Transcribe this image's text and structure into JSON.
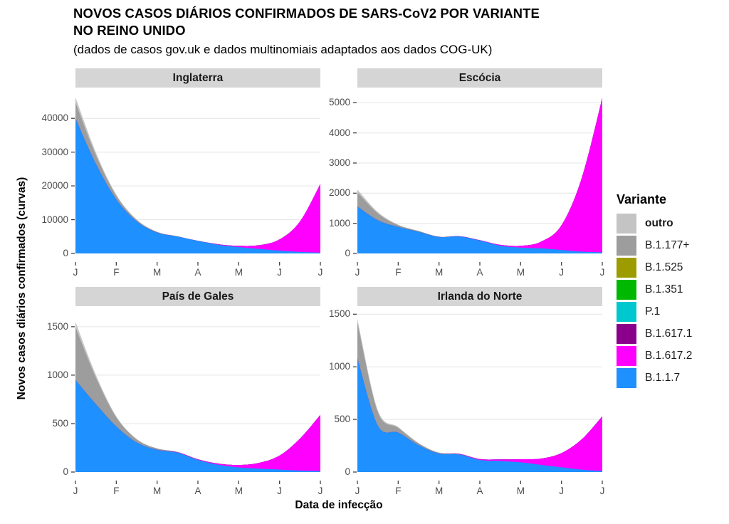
{
  "header": {
    "title": "NOVOS CASOS DIÁRIOS CONFIRMADOS DE SARS-CoV2 POR VARIANTE\nNO REINO UNIDO",
    "subtitle": "(dados de casos gov.uk e dados multinomiais adaptados aos dados COG-UK)"
  },
  "axes": {
    "x_title": "Data de infecção",
    "y_title": "Novos casos diários confirmados (curvas)"
  },
  "legend": {
    "title": "Variante",
    "items": [
      {
        "label": "outro",
        "color": "#C4C4C4",
        "bold": true
      },
      {
        "label": "B.1.177+",
        "color": "#9D9D9D",
        "bold": false
      },
      {
        "label": "B.1.525",
        "color": "#9C9C00",
        "bold": false
      },
      {
        "label": "B.1.351",
        "color": "#00B800",
        "bold": false
      },
      {
        "label": "P.1",
        "color": "#00C8CE",
        "bold": false
      },
      {
        "label": "B.1.617.1",
        "color": "#8B008B",
        "bold": false
      },
      {
        "label": "B.1.617.2",
        "color": "#FF00FF",
        "bold": false
      },
      {
        "label": "B.1.1.7",
        "color": "#1E90FF",
        "bold": false
      }
    ]
  },
  "chart_data": {
    "type": "area",
    "stacked": true,
    "grid": "horizontal-major-only",
    "legend_position": "right",
    "x_label_meaning": "months Jan–Jul 2021",
    "x_months": [
      0,
      0.5,
      1,
      1.5,
      2,
      2.5,
      3,
      3.5,
      4,
      4.5,
      5,
      5.5,
      6
    ],
    "x_tick_labels": [
      "J",
      "F",
      "M",
      "A",
      "M",
      "J",
      "J"
    ],
    "colors": {
      "outro": "#C4C4C4",
      "B.1.177+": "#9D9D9D",
      "B.1.525": "#9C9C00",
      "B.1.351": "#00B800",
      "P.1": "#00C8CE",
      "B.1.617.1": "#8B008B",
      "B.1.617.2": "#FF00FF",
      "B.1.1.7": "#1E90FF"
    },
    "stack_order_bottom_to_top": [
      "B.1.1.7",
      "B.1.617.2",
      "B.1.617.1",
      "P.1",
      "B.1.351",
      "B.1.525",
      "B.1.177+",
      "outro"
    ],
    "panels": [
      {
        "title": "Inglaterra",
        "y_ticks": [
          0,
          10000,
          20000,
          30000,
          40000
        ],
        "y_max": 48900,
        "series": {
          "B.1.1.7": [
            40000,
            26500,
            16000,
            9500,
            6200,
            5000,
            3700,
            2600,
            1900,
            1350,
            850,
            450,
            250
          ],
          "B.1.617.2": [
            0,
            0,
            0,
            0,
            5,
            15,
            40,
            120,
            350,
            1100,
            3300,
            9000,
            20300
          ],
          "B.1.617.1": [
            0,
            0,
            0,
            0,
            0,
            0,
            0,
            0,
            0,
            0,
            0,
            0,
            0
          ],
          "P.1": [
            0,
            0,
            0,
            0,
            0,
            0,
            0,
            0,
            0,
            0,
            0,
            0,
            0
          ],
          "B.1.351": [
            0,
            0,
            0,
            0,
            0,
            0,
            0,
            0,
            0,
            0,
            0,
            0,
            0
          ],
          "B.1.525": [
            0,
            0,
            0,
            0,
            0,
            0,
            0,
            0,
            0,
            0,
            0,
            0,
            0
          ],
          "B.1.177+": [
            4700,
            2600,
            1100,
            420,
            160,
            60,
            25,
            10,
            5,
            3,
            2,
            1,
            0
          ],
          "outro": [
            1500,
            800,
            350,
            140,
            60,
            25,
            10,
            5,
            3,
            2,
            1,
            1,
            0
          ]
        }
      },
      {
        "title": "Escócia",
        "y_ticks": [
          0,
          1000,
          2000,
          3000,
          4000,
          5000
        ],
        "y_max": 5480,
        "series": {
          "B.1.1.7": [
            1560,
            1100,
            880,
            720,
            545,
            565,
            430,
            260,
            195,
            170,
            115,
            60,
            35
          ],
          "B.1.617.2": [
            0,
            0,
            0,
            0,
            2,
            5,
            10,
            25,
            60,
            220,
            820,
            2450,
            5120
          ],
          "B.1.617.1": [
            0,
            0,
            0,
            0,
            0,
            0,
            0,
            0,
            0,
            0,
            0,
            0,
            0
          ],
          "P.1": [
            0,
            0,
            0,
            0,
            0,
            0,
            0,
            0,
            0,
            0,
            0,
            0,
            0
          ],
          "B.1.351": [
            0,
            0,
            0,
            0,
            0,
            0,
            0,
            0,
            0,
            0,
            0,
            0,
            0
          ],
          "B.1.525": [
            0,
            0,
            0,
            0,
            0,
            0,
            0,
            0,
            0,
            0,
            0,
            0,
            0
          ],
          "B.1.177+": [
            470,
            230,
            60,
            25,
            10,
            5,
            2,
            1,
            0,
            0,
            0,
            0,
            0
          ],
          "outro": [
            90,
            45,
            15,
            6,
            3,
            1,
            1,
            0,
            0,
            0,
            0,
            0,
            0
          ]
        }
      },
      {
        "title": "País de Gales",
        "y_ticks": [
          0,
          500,
          1000,
          1500
        ],
        "y_max": 1705,
        "series": {
          "B.1.1.7": [
            950,
            700,
            470,
            305,
            230,
            200,
            125,
            75,
            48,
            35,
            25,
            15,
            10
          ],
          "B.1.617.2": [
            0,
            0,
            0,
            0,
            1,
            3,
            6,
            12,
            25,
            60,
            145,
            330,
            580
          ],
          "B.1.617.1": [
            0,
            0,
            0,
            0,
            0,
            0,
            0,
            0,
            0,
            0,
            0,
            0,
            0
          ],
          "P.1": [
            0,
            0,
            0,
            0,
            0,
            0,
            0,
            0,
            0,
            0,
            0,
            0,
            0
          ],
          "B.1.351": [
            0,
            0,
            0,
            0,
            0,
            0,
            0,
            0,
            0,
            0,
            0,
            0,
            0
          ],
          "B.1.525": [
            0,
            0,
            0,
            0,
            0,
            0,
            0,
            0,
            0,
            0,
            0,
            0,
            0
          ],
          "B.1.177+": [
            545,
            275,
            95,
            32,
            12,
            5,
            2,
            1,
            0,
            0,
            0,
            0,
            0
          ],
          "outro": [
            55,
            28,
            10,
            4,
            2,
            1,
            0,
            0,
            0,
            0,
            0,
            0,
            0
          ]
        }
      },
      {
        "title": "Irlanda do Norte",
        "y_ticks": [
          0,
          500,
          1000,
          1500
        ],
        "y_max": 1570,
        "series": {
          "B.1.1.7": [
            1080,
            440,
            375,
            255,
            175,
            168,
            115,
            105,
            92,
            68,
            45,
            22,
            10
          ],
          "B.1.617.2": [
            0,
            0,
            0,
            0,
            1,
            3,
            8,
            15,
            30,
            60,
            135,
            290,
            520
          ],
          "B.1.617.1": [
            0,
            0,
            0,
            0,
            0,
            0,
            0,
            0,
            0,
            0,
            0,
            0,
            0
          ],
          "P.1": [
            0,
            0,
            0,
            0,
            0,
            0,
            0,
            0,
            0,
            0,
            0,
            0,
            0
          ],
          "B.1.351": [
            0,
            0,
            0,
            0,
            0,
            0,
            0,
            0,
            0,
            0,
            0,
            0,
            0
          ],
          "B.1.525": [
            0,
            0,
            0,
            0,
            0,
            0,
            0,
            0,
            0,
            0,
            0,
            0,
            0
          ],
          "B.1.177+": [
            340,
            130,
            45,
            18,
            8,
            3,
            1,
            0,
            0,
            0,
            0,
            0,
            0
          ],
          "outro": [
            35,
            18,
            8,
            3,
            1,
            1,
            0,
            0,
            0,
            0,
            0,
            0,
            0
          ]
        }
      }
    ]
  }
}
